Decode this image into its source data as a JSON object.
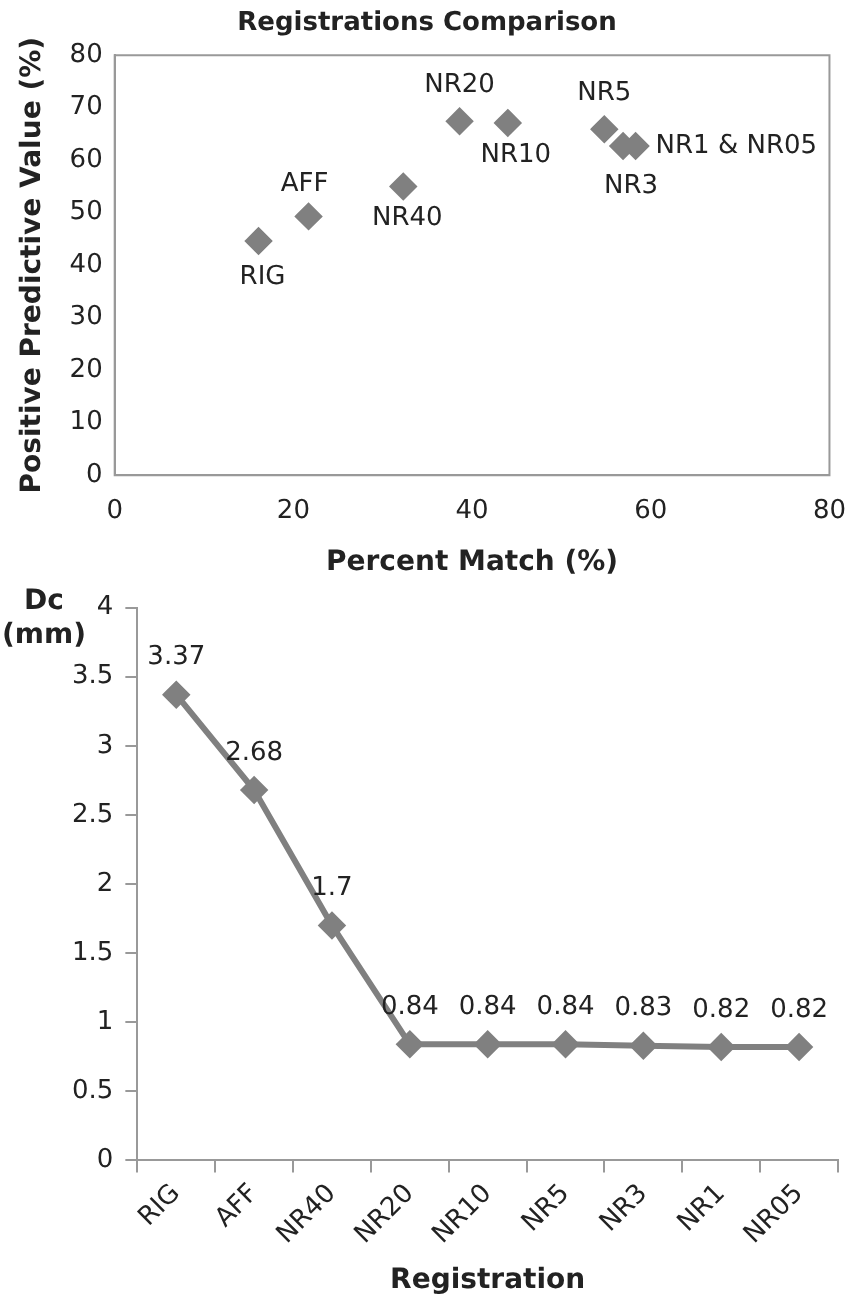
{
  "chart_data": [
    {
      "type": "scatter",
      "title": "Registrations Comparison",
      "xlabel": "Percent Match (%)",
      "ylabel": "Positive Predictive Value (%)",
      "xlim": [
        0,
        80
      ],
      "xticks": [
        0,
        20,
        40,
        60,
        80
      ],
      "ylim": [
        0,
        80
      ],
      "yticks": [
        0,
        10,
        20,
        30,
        40,
        50,
        60,
        70,
        80
      ],
      "grid": false,
      "legend": false,
      "marker": "diamond",
      "series": [
        {
          "color": "#808080",
          "x": [
            16.1,
            21.7,
            32.3,
            38.6,
            44,
            54.8,
            56.9,
            58.3
          ],
          "values": [
            44.6,
            49.3,
            55,
            67.4,
            67.1,
            65.9,
            62.7,
            62.7
          ]
        }
      ],
      "annotations": [
        {
          "text": "RIG",
          "x": 16.1,
          "y": 44.6
        },
        {
          "text": "AFF",
          "x": 21.7,
          "y": 49.3
        },
        {
          "text": "NR40",
          "x": 32.3,
          "y": 55
        },
        {
          "text": "NR20",
          "x": 38.6,
          "y": 67.4
        },
        {
          "text": "NR10",
          "x": 44,
          "y": 67.1
        },
        {
          "text": "NR5",
          "x": 54.8,
          "y": 65.9
        },
        {
          "text": "NR3",
          "x": 56.9,
          "y": 62.7
        },
        {
          "text": "NR1 & NR05",
          "x": 58.3,
          "y": 62.7
        }
      ]
    },
    {
      "type": "line",
      "xlabel": "Registration",
      "ylabel": "Dc (mm)",
      "categories": [
        "RIG",
        "AFF",
        "NR40",
        "NR20",
        "NR10",
        "NR5",
        "NR3",
        "NR1",
        "NR05"
      ],
      "ylim": [
        0,
        4
      ],
      "yticks": [
        0,
        0.5,
        1,
        1.5,
        2,
        2.5,
        3,
        3.5,
        4
      ],
      "grid": false,
      "legend": false,
      "marker": "diamond",
      "data_labels": true,
      "series": [
        {
          "color": "#808080",
          "values": [
            3.37,
            2.68,
            1.7,
            0.84,
            0.84,
            0.84,
            0.83,
            0.82,
            0.82
          ]
        }
      ]
    }
  ]
}
